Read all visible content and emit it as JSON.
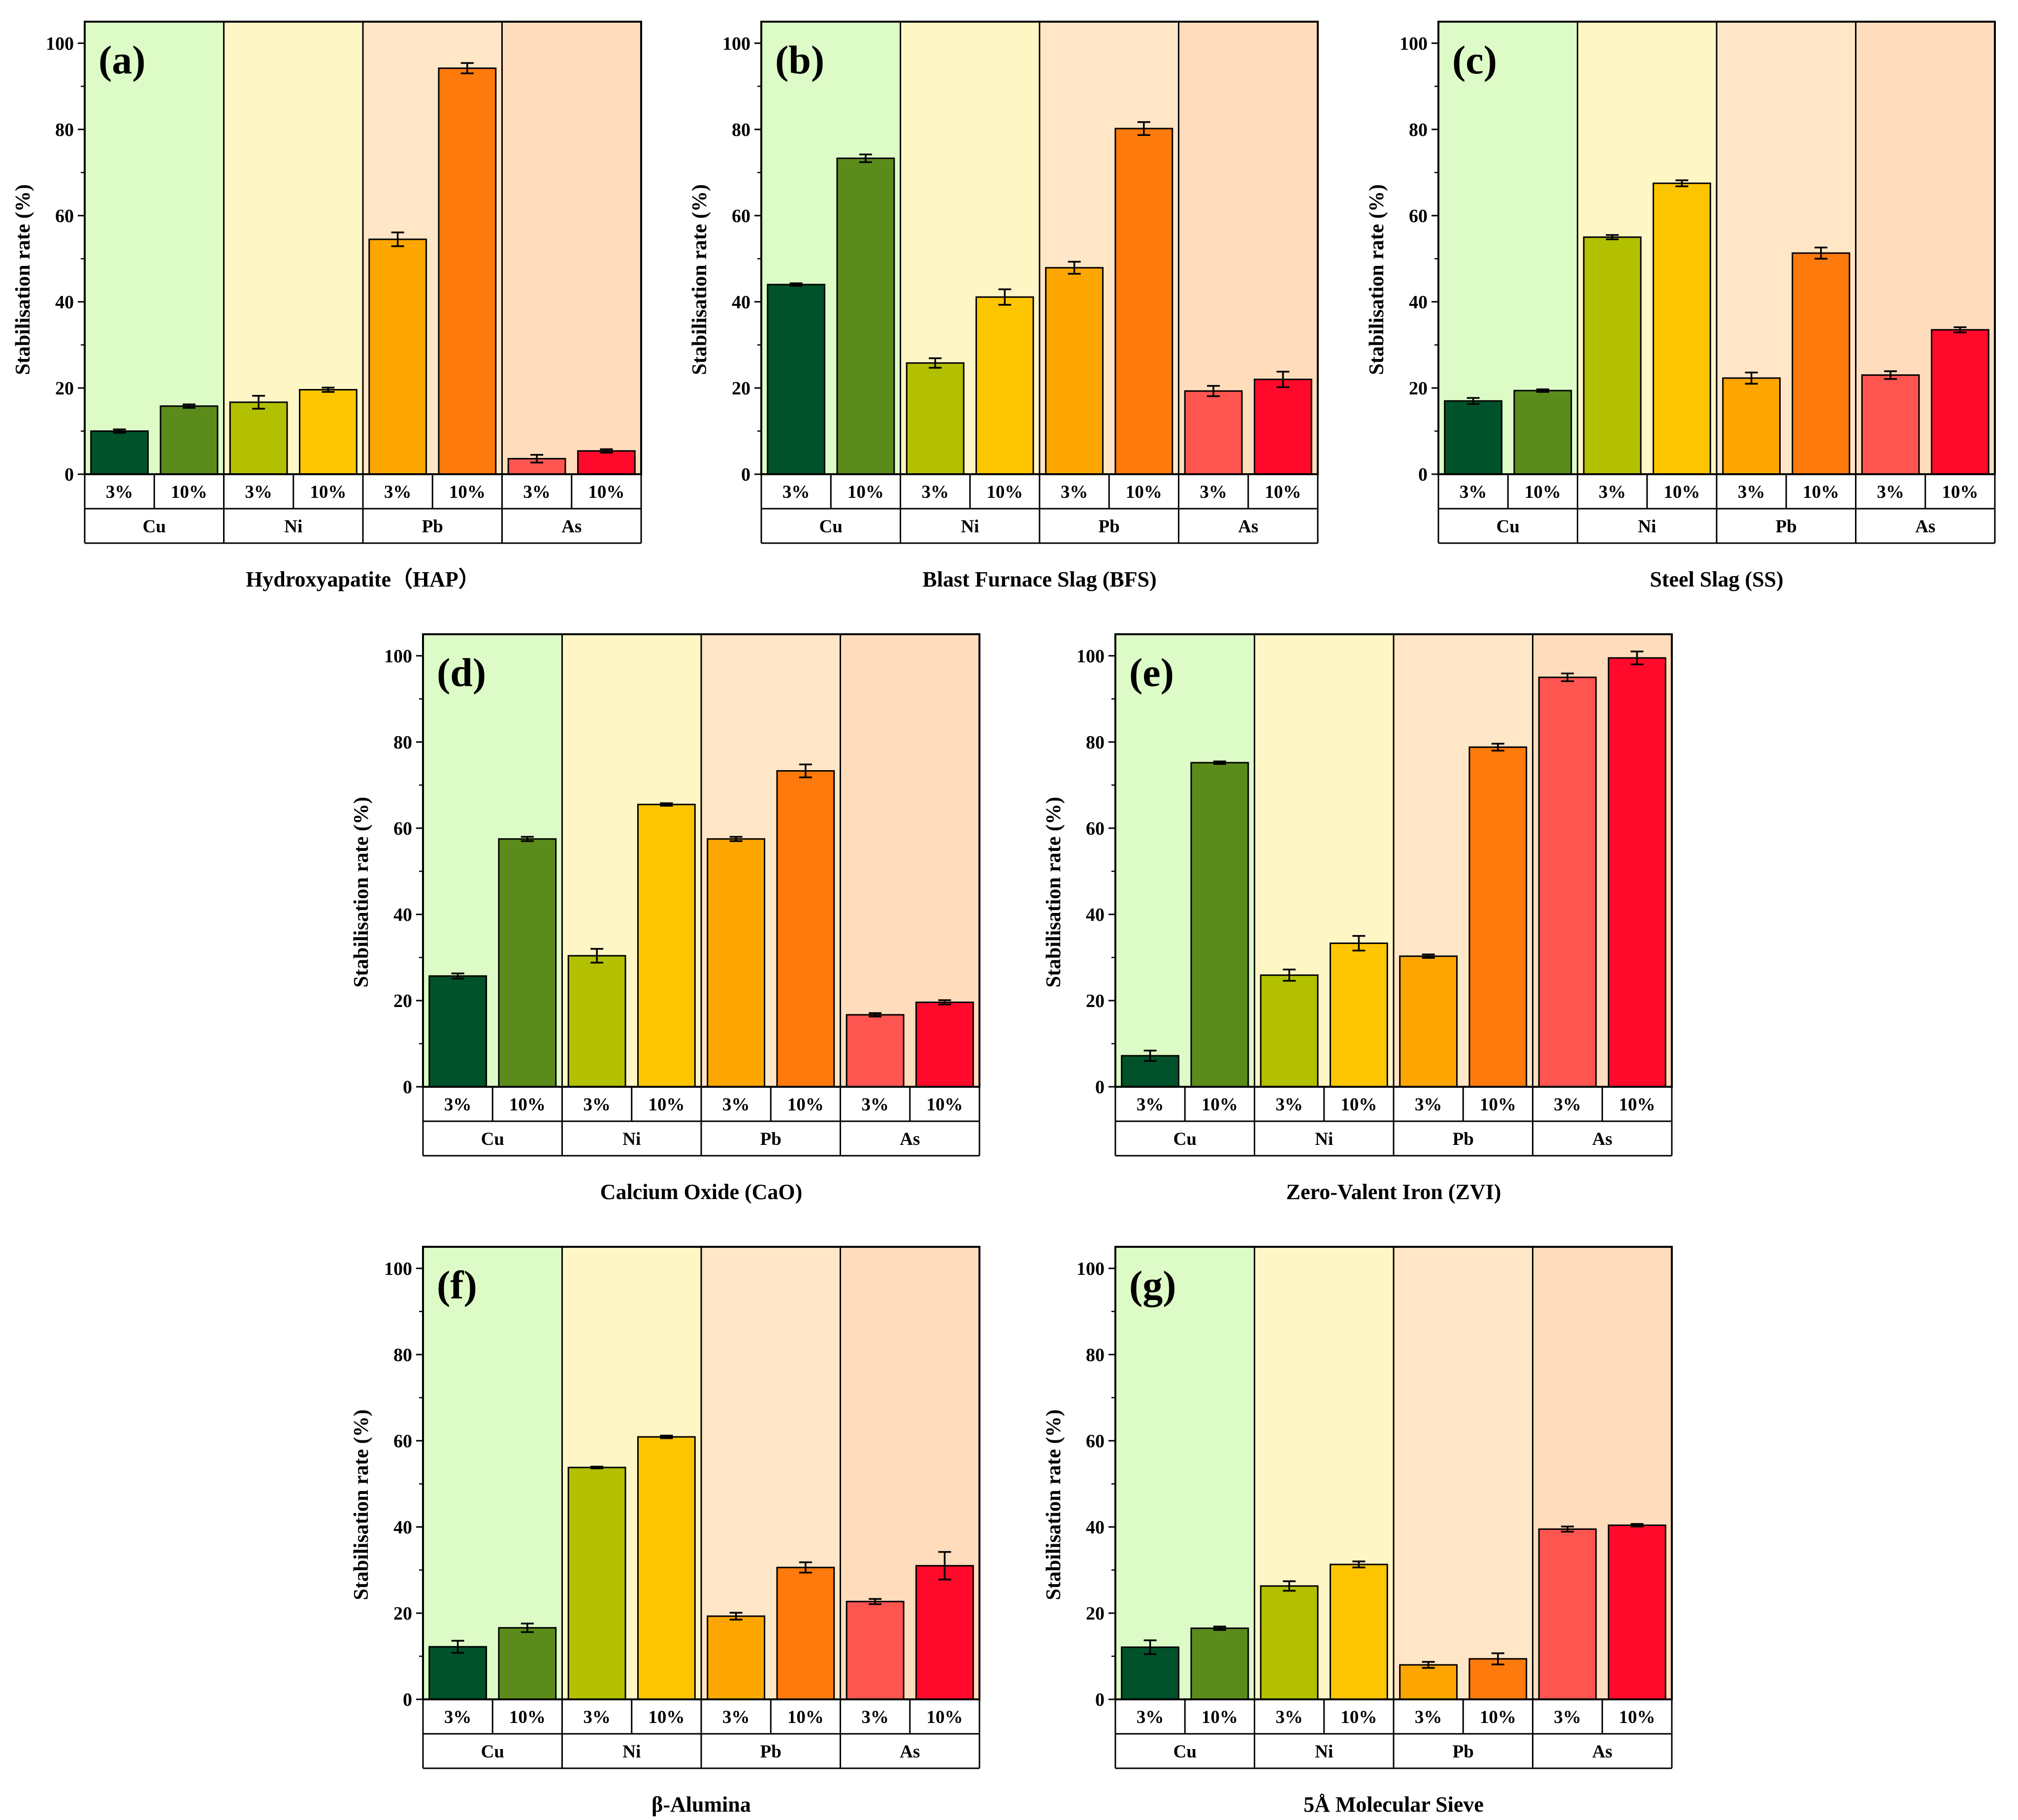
{
  "figure": {
    "y_axis_label": "Stabilisation rate  (%)",
    "dosages": [
      "3%",
      "10%"
    ],
    "metals": [
      "Cu",
      "Ni",
      "Pb",
      "As"
    ]
  },
  "colors": {
    "group_backgrounds": [
      "#ddfbc6",
      "#fff6c6",
      "#ffe6c6",
      "#ffdcbc"
    ],
    "bars": [
      "#00522a",
      "#5b8c1b",
      "#b2c000",
      "#fcc500",
      "#fda600",
      "#ff7a0c",
      "#ff5550",
      "#ff0a2a"
    ]
  },
  "chart_data": [
    {
      "panel": "(a)",
      "type": "bar",
      "xlabel": "Hydroxyapatite（HAP）",
      "ylabel": "Stabilisation rate  (%)",
      "ylim": [
        0,
        105
      ],
      "yticks": [
        0,
        20,
        40,
        60,
        80,
        100
      ],
      "groups": [
        "Cu",
        "Ni",
        "Pb",
        "As"
      ],
      "categories": [
        "3%",
        "10%"
      ],
      "series": [
        {
          "name": "Cu",
          "values": [
            10.0,
            15.8
          ],
          "errors": [
            0.4,
            0.4
          ]
        },
        {
          "name": "Ni",
          "values": [
            16.7,
            19.6
          ],
          "errors": [
            1.5,
            0.5
          ]
        },
        {
          "name": "Pb",
          "values": [
            54.5,
            94.2
          ],
          "errors": [
            1.6,
            1.2
          ]
        },
        {
          "name": "As",
          "values": [
            3.6,
            5.4
          ],
          "errors": [
            0.9,
            0.4
          ]
        }
      ]
    },
    {
      "panel": "(b)",
      "type": "bar",
      "xlabel": "Blast Furnace Slag (BFS)",
      "ylabel": "Stabilisation rate  (%)",
      "ylim": [
        0,
        105
      ],
      "yticks": [
        0,
        20,
        40,
        60,
        80,
        100
      ],
      "groups": [
        "Cu",
        "Ni",
        "Pb",
        "As"
      ],
      "categories": [
        "3%",
        "10%"
      ],
      "series": [
        {
          "name": "Cu",
          "values": [
            44.0,
            73.3
          ],
          "errors": [
            0.3,
            0.9
          ]
        },
        {
          "name": "Ni",
          "values": [
            25.8,
            41.1
          ],
          "errors": [
            1.1,
            1.8
          ]
        },
        {
          "name": "Pb",
          "values": [
            47.9,
            80.2
          ],
          "errors": [
            1.4,
            1.5
          ]
        },
        {
          "name": "As",
          "values": [
            19.3,
            22.0
          ],
          "errors": [
            1.2,
            1.8
          ]
        }
      ]
    },
    {
      "panel": "(c)",
      "type": "bar",
      "xlabel": "Steel Slag (SS)",
      "ylabel": "Stabilisation rate  (%)",
      "ylim": [
        0,
        105
      ],
      "yticks": [
        0,
        20,
        40,
        60,
        80,
        100
      ],
      "groups": [
        "Cu",
        "Ni",
        "Pb",
        "As"
      ],
      "categories": [
        "3%",
        "10%"
      ],
      "series": [
        {
          "name": "Cu",
          "values": [
            17.0,
            19.4
          ],
          "errors": [
            0.7,
            0.3
          ]
        },
        {
          "name": "Ni",
          "values": [
            55.0,
            67.5
          ],
          "errors": [
            0.5,
            0.7
          ]
        },
        {
          "name": "Pb",
          "values": [
            22.3,
            51.3
          ],
          "errors": [
            1.3,
            1.3
          ]
        },
        {
          "name": "As",
          "values": [
            23.0,
            33.5
          ],
          "errors": [
            0.9,
            0.6
          ]
        }
      ]
    },
    {
      "panel": "(d)",
      "type": "bar",
      "xlabel": "Calcium Oxide (CaO)",
      "ylabel": "Stabilisation rate  (%)",
      "ylim": [
        0,
        105
      ],
      "yticks": [
        0,
        20,
        40,
        60,
        80,
        100
      ],
      "groups": [
        "Cu",
        "Ni",
        "Pb",
        "As"
      ],
      "categories": [
        "3%",
        "10%"
      ],
      "series": [
        {
          "name": "Cu",
          "values": [
            25.7,
            57.5
          ],
          "errors": [
            0.6,
            0.5
          ]
        },
        {
          "name": "Ni",
          "values": [
            30.4,
            65.5
          ],
          "errors": [
            1.6,
            0.3
          ]
        },
        {
          "name": "Pb",
          "values": [
            57.5,
            73.3
          ],
          "errors": [
            0.5,
            1.5
          ]
        },
        {
          "name": "As",
          "values": [
            16.7,
            19.6
          ],
          "errors": [
            0.4,
            0.5
          ]
        }
      ]
    },
    {
      "panel": "(e)",
      "type": "bar",
      "xlabel": "Zero-Valent Iron (ZVI)",
      "ylabel": "Stabilisation rate  (%)",
      "ylim": [
        0,
        105
      ],
      "yticks": [
        0,
        20,
        40,
        60,
        80,
        100
      ],
      "groups": [
        "Cu",
        "Ni",
        "Pb",
        "As"
      ],
      "categories": [
        "3%",
        "10%"
      ],
      "series": [
        {
          "name": "Cu",
          "values": [
            7.2,
            75.2
          ],
          "errors": [
            1.2,
            0.3
          ]
        },
        {
          "name": "Ni",
          "values": [
            25.9,
            33.3
          ],
          "errors": [
            1.3,
            1.7
          ]
        },
        {
          "name": "Pb",
          "values": [
            30.3,
            78.8
          ],
          "errors": [
            0.4,
            0.8
          ]
        },
        {
          "name": "As",
          "values": [
            95.0,
            99.5
          ],
          "errors": [
            0.9,
            1.5
          ]
        }
      ]
    },
    {
      "panel": "(f)",
      "type": "bar",
      "xlabel": "β-Alumina",
      "ylabel": "Stabilisation rate  (%)",
      "ylim": [
        0,
        105
      ],
      "yticks": [
        0,
        20,
        40,
        60,
        80,
        100
      ],
      "groups": [
        "Cu",
        "Ni",
        "Pb",
        "As"
      ],
      "categories": [
        "3%",
        "10%"
      ],
      "series": [
        {
          "name": "Cu",
          "values": [
            12.2,
            16.6
          ],
          "errors": [
            1.4,
            1.0
          ]
        },
        {
          "name": "Ni",
          "values": [
            53.8,
            60.9
          ],
          "errors": [
            0.2,
            0.3
          ]
        },
        {
          "name": "Pb",
          "values": [
            19.3,
            30.6
          ],
          "errors": [
            0.8,
            1.2
          ]
        },
        {
          "name": "As",
          "values": [
            22.7,
            31.0
          ],
          "errors": [
            0.6,
            3.2
          ]
        }
      ]
    },
    {
      "panel": "(g)",
      "type": "bar",
      "xlabel": "5Å Molecular Sieve",
      "ylabel": "Stabilisation rate  (%)",
      "ylim": [
        0,
        105
      ],
      "yticks": [
        0,
        20,
        40,
        60,
        80,
        100
      ],
      "groups": [
        "Cu",
        "Ni",
        "Pb",
        "As"
      ],
      "categories": [
        "3%",
        "10%"
      ],
      "series": [
        {
          "name": "Cu",
          "values": [
            12.1,
            16.5
          ],
          "errors": [
            1.6,
            0.4
          ]
        },
        {
          "name": "Ni",
          "values": [
            26.3,
            31.3
          ],
          "errors": [
            1.1,
            0.7
          ]
        },
        {
          "name": "Pb",
          "values": [
            8.0,
            9.4
          ],
          "errors": [
            0.7,
            1.3
          ]
        },
        {
          "name": "As",
          "values": [
            39.5,
            40.4
          ],
          "errors": [
            0.6,
            0.3
          ]
        }
      ]
    }
  ]
}
